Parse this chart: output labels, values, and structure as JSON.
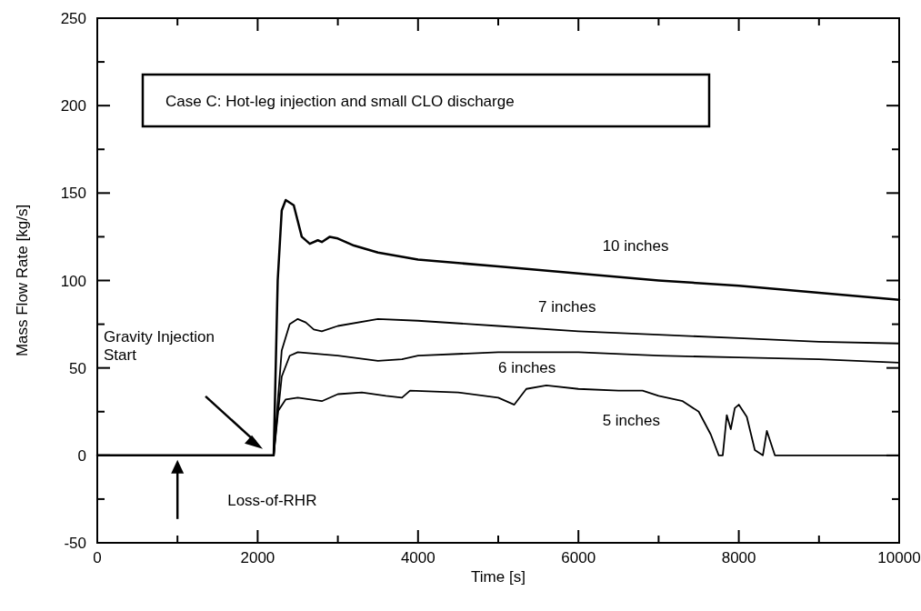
{
  "chart_data": {
    "type": "line",
    "title": "Case C: Hot-leg injection and small CLO discharge",
    "xlabel": "Time [s]",
    "ylabel": "Mass Flow Rate [kg/s]",
    "xlim": [
      0,
      10000
    ],
    "ylim": [
      -50,
      250
    ],
    "xticks": [
      0,
      {
        "value": 1000,
        "label": null
      },
      2000,
      {
        "value": 3000,
        "label": null
      },
      4000,
      {
        "value": 5000,
        "label": null
      },
      6000,
      {
        "value": 7000,
        "label": null
      },
      8000,
      {
        "value": 9000,
        "label": null
      },
      10000
    ],
    "yticks": [
      -50,
      {
        "value": -25,
        "label": null
      },
      0,
      {
        "value": 25,
        "label": null
      },
      50,
      {
        "value": 75,
        "label": null
      },
      100,
      {
        "value": 125,
        "label": null
      },
      150,
      {
        "value": 175,
        "label": null
      },
      200,
      {
        "value": 225,
        "label": null
      },
      250
    ],
    "grid": false,
    "marker": "none",
    "line_style": "solid",
    "series": [
      {
        "name": "10 inches",
        "color": "#000000",
        "x": [
          0,
          2200,
          2250,
          2300,
          2350,
          2450,
          2550,
          2650,
          2750,
          2800,
          2900,
          3000,
          3200,
          3500,
          4000,
          5000,
          6000,
          7000,
          8000,
          9000,
          10000
        ],
        "values": [
          0,
          0,
          100,
          140,
          146,
          143,
          125,
          121,
          123,
          122,
          125,
          124,
          120,
          116,
          112,
          108,
          104,
          100,
          97,
          93,
          89
        ]
      },
      {
        "name": "7 inches",
        "color": "#000000",
        "x": [
          0,
          2200,
          2300,
          2400,
          2500,
          2600,
          2700,
          2800,
          3000,
          3500,
          4000,
          5000,
          6000,
          7000,
          8000,
          9000,
          10000
        ],
        "values": [
          0,
          0,
          60,
          75,
          78,
          76,
          72,
          71,
          74,
          78,
          77,
          74,
          71,
          69,
          67,
          65,
          64
        ]
      },
      {
        "name": "6 inches",
        "color": "#000000",
        "x": [
          0,
          2200,
          2300,
          2400,
          2500,
          3000,
          3500,
          3800,
          4000,
          5000,
          6000,
          7000,
          8000,
          9000,
          10000
        ],
        "values": [
          0,
          0,
          45,
          57,
          59,
          57,
          54,
          55,
          57,
          59,
          59,
          57,
          56,
          55,
          53
        ]
      },
      {
        "name": "5 inches",
        "color": "#000000",
        "x": [
          0,
          2200,
          2250,
          2350,
          2500,
          2800,
          3000,
          3300,
          3600,
          3800,
          3900,
          4500,
          5000,
          5200,
          5350,
          5600,
          6000,
          6500,
          6800,
          7000,
          7300,
          7500,
          7650,
          7750,
          7800,
          7850,
          7900,
          7950,
          8000,
          8100,
          8200,
          8300,
          8350,
          8450,
          10000
        ],
        "values": [
          0,
          0,
          25,
          32,
          33,
          31,
          35,
          36,
          34,
          33,
          37,
          36,
          33,
          29,
          38,
          40,
          38,
          37,
          37,
          34,
          31,
          25,
          12,
          0,
          0,
          23,
          15,
          27,
          29,
          22,
          3,
          0,
          14,
          0,
          0
        ]
      }
    ],
    "annotations": [
      "Gravity Injection Start",
      "Loss-of-RHR"
    ]
  }
}
